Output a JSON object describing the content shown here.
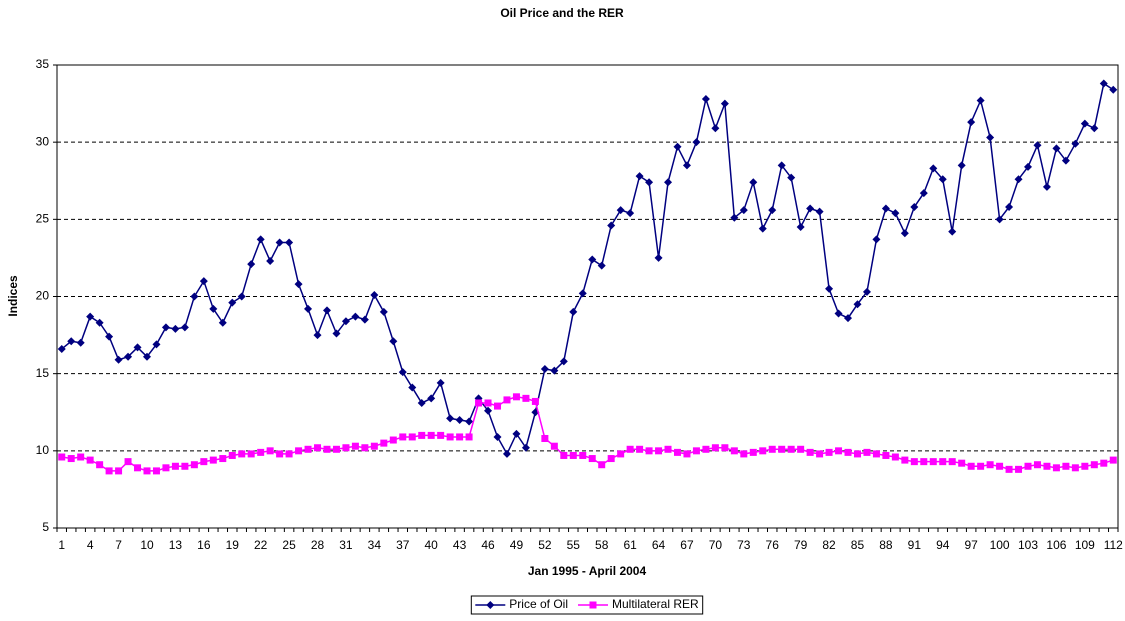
{
  "chart_data": {
    "type": "line",
    "title": "Oil Price and the RER",
    "x_label": "Jan 1995 - April 2004",
    "y_label": "Indices",
    "categories": [
      1,
      null,
      null,
      4,
      null,
      null,
      7,
      null,
      null,
      10,
      null,
      null,
      13,
      null,
      null,
      16,
      null,
      null,
      19,
      null,
      null,
      22,
      null,
      null,
      25,
      null,
      null,
      28,
      null,
      null,
      31,
      null,
      null,
      34,
      null,
      null,
      37,
      null,
      null,
      40,
      null,
      null,
      43,
      null,
      null,
      46,
      null,
      null,
      49,
      null,
      null,
      52,
      null,
      null,
      55,
      null,
      null,
      58,
      null,
      null,
      61,
      null,
      null,
      64,
      null,
      null,
      67,
      null,
      null,
      70,
      null,
      null,
      73,
      null,
      null,
      76,
      null,
      null,
      79,
      null,
      null,
      82,
      null,
      null,
      85,
      null,
      null,
      88,
      null,
      null,
      91,
      null,
      null,
      94,
      null,
      null,
      97,
      null,
      null,
      100,
      null,
      null,
      103,
      null,
      null,
      106,
      null,
      null,
      109,
      null,
      null,
      112
    ],
    "series": [
      {
        "name": "Price of Oil",
        "color": "#000080",
        "marker": "diamond",
        "values": [
          16.6,
          17.1,
          17.0,
          18.7,
          18.3,
          17.4,
          15.9,
          16.1,
          16.7,
          16.1,
          16.9,
          18.0,
          17.9,
          18.0,
          20.0,
          21.0,
          19.2,
          18.3,
          19.6,
          20.0,
          22.1,
          23.7,
          22.3,
          23.5,
          23.5,
          20.8,
          19.2,
          17.5,
          19.1,
          17.6,
          18.4,
          18.7,
          18.5,
          20.1,
          19.0,
          17.1,
          15.1,
          14.1,
          13.1,
          13.4,
          14.4,
          12.1,
          12.0,
          11.9,
          13.4,
          12.6,
          10.9,
          9.8,
          11.1,
          10.2,
          12.5,
          15.3,
          15.2,
          15.8,
          19.0,
          20.2,
          22.4,
          22.0,
          24.6,
          25.6,
          25.4,
          27.8,
          27.4,
          22.5,
          27.4,
          29.7,
          28.5,
          30.0,
          32.8,
          30.9,
          32.5,
          25.1,
          25.6,
          27.4,
          24.4,
          25.6,
          28.5,
          27.7,
          24.5,
          25.7,
          25.5,
          20.5,
          18.9,
          18.6,
          19.5,
          20.3,
          23.7,
          25.7,
          25.4,
          24.1,
          25.8,
          26.7,
          28.3,
          27.6,
          24.2,
          28.5,
          31.3,
          32.7,
          30.3,
          25.0,
          25.8,
          27.6,
          28.4,
          29.8,
          27.1,
          29.6,
          28.8,
          29.9,
          31.2,
          30.9,
          33.8,
          33.4
        ]
      },
      {
        "name": "Multilateral RER",
        "color": "#ff00ff",
        "marker": "square",
        "values": [
          9.6,
          9.5,
          9.6,
          9.4,
          9.1,
          8.7,
          8.7,
          9.3,
          8.9,
          8.7,
          8.7,
          8.9,
          9.0,
          9.0,
          9.1,
          9.3,
          9.4,
          9.5,
          9.7,
          9.8,
          9.8,
          9.9,
          10.0,
          9.8,
          9.8,
          10.0,
          10.1,
          10.2,
          10.1,
          10.1,
          10.2,
          10.3,
          10.2,
          10.3,
          10.5,
          10.7,
          10.9,
          10.9,
          11.0,
          11.0,
          11.0,
          10.9,
          10.9,
          10.9,
          13.1,
          13.1,
          12.9,
          13.3,
          13.5,
          13.4,
          13.2,
          10.8,
          10.3,
          9.7,
          9.7,
          9.7,
          9.5,
          9.1,
          9.5,
          9.8,
          10.1,
          10.1,
          10.0,
          10.0,
          10.1,
          9.9,
          9.8,
          10.0,
          10.1,
          10.2,
          10.2,
          10.0,
          9.8,
          9.9,
          10.0,
          10.1,
          10.1,
          10.1,
          10.1,
          9.9,
          9.8,
          9.9,
          10.0,
          9.9,
          9.8,
          9.9,
          9.8,
          9.7,
          9.6,
          9.4,
          9.3,
          9.3,
          9.3,
          9.3,
          9.3,
          9.2,
          9.0,
          9.0,
          9.1,
          9.0,
          8.8,
          8.8,
          9.0,
          9.1,
          9.0,
          8.9,
          9.0,
          8.9,
          9.0,
          9.1,
          9.2,
          9.4
        ]
      }
    ],
    "ylim": [
      5,
      35
    ],
    "yticks": [
      5,
      10,
      15,
      20,
      25,
      30,
      35
    ],
    "grid": true,
    "legend": "bottom"
  }
}
